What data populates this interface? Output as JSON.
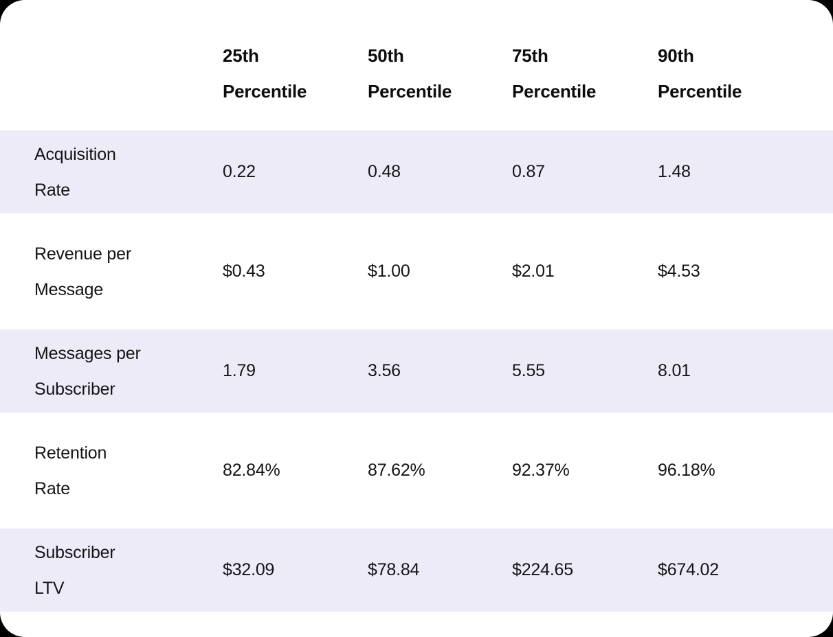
{
  "page": {
    "background_color": "#000000",
    "card_background_color": "#ffffff",
    "row_stripe_color": "#ECEBF7",
    "text_color": "#141417",
    "header_text_color": "#0d0d10"
  },
  "chart_data": {
    "type": "table",
    "columns": [
      "25th\nPercentile",
      "50th\nPercentile",
      "75th\nPercentile",
      "90th\nPercentile"
    ],
    "rows": [
      {
        "label": "Acquisition\nRate",
        "values": [
          "0.22",
          "0.48",
          "0.87",
          "1.48"
        ]
      },
      {
        "label": "Revenue per\nMessage",
        "values": [
          "$0.43",
          "$1.00",
          "$2.01",
          "$4.53"
        ]
      },
      {
        "label": "Messages per\nSubscriber",
        "values": [
          "1.79",
          "3.56",
          "5.55",
          "8.01"
        ]
      },
      {
        "label": "Retention\nRate",
        "values": [
          "82.84%",
          "87.62%",
          "92.37%",
          "96.18%"
        ]
      },
      {
        "label": "Subscriber\nLTV",
        "values": [
          "$32.09",
          "$78.84",
          "$224.65",
          "$674.02"
        ]
      }
    ]
  }
}
